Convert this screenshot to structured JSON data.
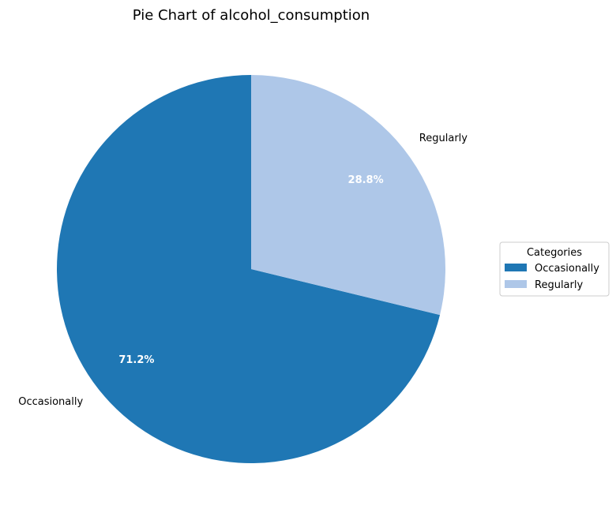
{
  "chart_data": {
    "type": "pie",
    "title": "Pie Chart of alcohol_consumption",
    "categories": [
      "Occasionally",
      "Regularly"
    ],
    "values": [
      71.2,
      28.8
    ],
    "percent_labels": [
      "71.2%",
      "28.8%"
    ],
    "colors": [
      "#1f77b4",
      "#aec7e8"
    ],
    "start_angle_deg": 90,
    "direction": "clockwise-from-top",
    "legend": {
      "title": "Categories",
      "placement": "center-right",
      "entries": [
        "Occasionally",
        "Regularly"
      ]
    }
  }
}
